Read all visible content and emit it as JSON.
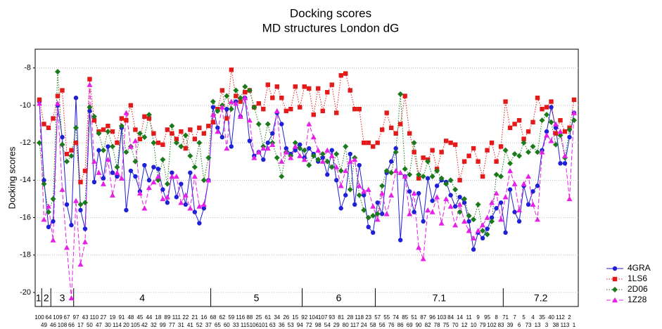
{
  "chart_data": {
    "type": "line",
    "title": "Docking scores",
    "subtitle": "MD structures London dG",
    "y_label": "Docking scores",
    "categories": [
      "100",
      "49",
      "64",
      "46",
      "109",
      "108",
      "67",
      "66",
      "97",
      "17",
      "43",
      "50",
      "110",
      "47",
      "27",
      "30",
      "19",
      "114",
      "91",
      "20",
      "48",
      "105",
      "45",
      "42",
      "44",
      "32",
      "18",
      "99",
      "89",
      "77",
      "111",
      "31",
      "22",
      "41",
      "21",
      "52",
      "16",
      "37",
      "68",
      "65",
      "62",
      "60",
      "59",
      "33",
      "116",
      "115",
      "88",
      "106",
      "25",
      "101",
      "61",
      "63",
      "34",
      "36",
      "26",
      "53",
      "15",
      "94",
      "92",
      "72",
      "104",
      "98",
      "107",
      "54",
      "93",
      "29",
      "81",
      "80",
      "28",
      "117",
      "118",
      "24",
      "23",
      "58",
      "57",
      "56",
      "55",
      "76",
      "74",
      "86",
      "85",
      "69",
      "51",
      "90",
      "87",
      "82",
      "96",
      "78",
      "103",
      "75",
      "84",
      "70",
      "14",
      "12",
      "11",
      "10",
      "9",
      "79",
      "95",
      "102",
      "8",
      "83",
      "71",
      "39",
      "7",
      "6",
      "5",
      "73",
      "4",
      "13",
      "35",
      "3",
      "40",
      "38",
      "112",
      "113",
      "2",
      "1"
    ],
    "groups": [
      {
        "label": "1",
        "first": "100"
      },
      {
        "label": "2",
        "first": "49"
      },
      {
        "label": "3",
        "first": "46"
      },
      {
        "label": "4",
        "first": "97"
      },
      {
        "label": "5",
        "first": "68"
      },
      {
        "label": "6",
        "first": "92"
      },
      {
        "label": "7.1",
        "first": "57"
      },
      {
        "label": "7.2",
        "first": "71"
      }
    ],
    "series": [
      {
        "name": "4GRA",
        "color": "#1f1fd6",
        "marker": "circle",
        "dash": "solid",
        "values": [
          -9.8,
          -14.0,
          -16.5,
          -16.2,
          -10.0,
          -11.7,
          -15.3,
          -16.4,
          -9.6,
          -15.6,
          -16.6,
          -10.3,
          -14.1,
          -12.4,
          -13.9,
          -12.2,
          -13.6,
          -13.8,
          -11.2,
          -15.6,
          -13.5,
          -13.8,
          -14.6,
          -13.2,
          -14.0,
          -13.3,
          -13.4,
          -14.5,
          -15.2,
          -13.6,
          -14.9,
          -14.2,
          -15.3,
          -13.6,
          -15.7,
          -16.3,
          -15.5,
          -14.0,
          -10.1,
          -11.2,
          -11.7,
          -10.2,
          -12.2,
          -9.8,
          -10.6,
          -9.6,
          -11.9,
          -12.7,
          -12.5,
          -12.9,
          -12.0,
          -11.5,
          -10.4,
          -11.0,
          -12.3,
          -12.6,
          -12.4,
          -12.1,
          -12.8,
          -12.3,
          -12.6,
          -13.0,
          -12.8,
          -13.7,
          -12.4,
          -14.0,
          -15.5,
          -14.8,
          -12.6,
          -15.3,
          -13.2,
          -14.8,
          -16.5,
          -16.8,
          -15.2,
          -15.8,
          -13.6,
          -13.0,
          -12.3,
          -17.2,
          -13.8,
          -14.6,
          -15.7,
          -14.7,
          -16.2,
          -13.9,
          -15.1,
          -14.3,
          -14.0,
          -14.1,
          -14.8,
          -15.4,
          -14.9,
          -15.2,
          -16.2,
          -17.7,
          -16.8,
          -17.1,
          -16.6,
          -16.0,
          -15.5,
          -15.2,
          -16.8,
          -14.5,
          -15.7,
          -16.2,
          -14.3,
          -15.3,
          -14.6,
          -14.3,
          -12.4,
          -11.4,
          -10.1,
          -11.2,
          -13.1,
          -13.1,
          -11.7,
          -10.4
        ]
      },
      {
        "name": "1LS6",
        "color": "#e41a1a",
        "marker": "square",
        "dash": "dotted",
        "values": [
          -9.7,
          -11.0,
          -11.2,
          -10.7,
          -9.5,
          -9.2,
          -12.6,
          -12.4,
          -12.0,
          -14.1,
          -13.5,
          -8.6,
          -10.8,
          -11.4,
          -11.3,
          -11.1,
          -11.4,
          -12.0,
          -10.7,
          -10.8,
          -10.0,
          -11.3,
          -11.8,
          -10.6,
          -10.7,
          -11.5,
          -12.0,
          -12.1,
          -11.3,
          -11.5,
          -11.8,
          -11.4,
          -12.3,
          -11.3,
          -11.8,
          -11.2,
          -11.5,
          -11.1,
          -10.9,
          -10.2,
          -9.2,
          -10.7,
          -8.1,
          -9.5,
          -9.8,
          -9.3,
          -9.2,
          -10.1,
          -9.9,
          -10.2,
          -8.9,
          -9.6,
          -9.0,
          -9.6,
          -10.3,
          -10.2,
          -9.0,
          -10.1,
          -9.0,
          -9.1,
          -10.5,
          -9.1,
          -10.3,
          -9.3,
          -8.9,
          -10.4,
          -8.4,
          -8.3,
          -9.2,
          -10.2,
          -10.2,
          -12.0,
          -12.0,
          -12.2,
          -12.0,
          -11.3,
          -10.4,
          -11.2,
          -11.5,
          -11.0,
          -9.5,
          -11.5,
          -12.5,
          -13.9,
          -12.8,
          -12.9,
          -12.4,
          -13.4,
          -12.5,
          -11.9,
          -12.0,
          -12.1,
          -14.0,
          -13.0,
          -12.7,
          -12.3,
          -13.0,
          -13.8,
          -12.4,
          -12.0,
          -13.0,
          -12.2,
          -9.8,
          -11.2,
          -11.0,
          -10.8,
          -11.8,
          -11.4,
          -10.9,
          -9.6,
          -10.2,
          -10.1,
          -9.8,
          -11.5,
          -10.8,
          -11.4,
          -11.2,
          -9.7
        ]
      },
      {
        "name": "2D06",
        "color": "#1b7a1b",
        "marker": "diamond",
        "dash": "dotted",
        "values": [
          -12.0,
          -14.2,
          -15.7,
          -15.0,
          -8.2,
          -12.1,
          -13.0,
          -12.7,
          -11.2,
          -15.3,
          -15.2,
          -10.1,
          -10.6,
          -11.5,
          -12.4,
          -11.4,
          -12.2,
          -13.3,
          -11.1,
          -12.5,
          -12.2,
          -13.0,
          -11.5,
          -11.7,
          -10.5,
          -12.0,
          -14.0,
          -12.9,
          -14.2,
          -11.1,
          -12.0,
          -12.2,
          -11.6,
          -12.7,
          -13.3,
          -12.0,
          -14.0,
          -12.8,
          -9.8,
          -10.3,
          -10.0,
          -9.5,
          -10.2,
          -9.2,
          -9.6,
          -9.0,
          -9.2,
          -10.1,
          -11.0,
          -12.2,
          -11.0,
          -12.0,
          -12.8,
          -13.8,
          -12.5,
          -12.7,
          -12.0,
          -12.3,
          -12.4,
          -13.2,
          -12.7,
          -12.9,
          -12.6,
          -13.0,
          -13.3,
          -12.6,
          -13.5,
          -12.2,
          -14.5,
          -12.8,
          -14.8,
          -15.6,
          -16.0,
          -15.9,
          -15.8,
          -14.3,
          -13.5,
          -13.6,
          -12.5,
          -9.4,
          -13.4,
          -13.7,
          -12.0,
          -13.7,
          -13.8,
          -13.0,
          -13.8,
          -13.5,
          -13.9,
          -14.2,
          -14.0,
          -14.5,
          -15.7,
          -15.0,
          -15.9,
          -16.1,
          -15.3,
          -16.7,
          -16.9,
          -16.2,
          -13.7,
          -13.8,
          -12.4,
          -13.1,
          -12.6,
          -12.7,
          -12.0,
          -12.5,
          -12.2,
          -12.5,
          -10.8,
          -10.5,
          -10.9,
          -12.1,
          -11.6,
          -12.8,
          -11.3,
          -10.8
        ]
      },
      {
        "name": "1Z28",
        "color": "#e61ee6",
        "marker": "triangle",
        "dash": "dashed",
        "values": [
          -9.9,
          -16.1,
          -15.4,
          -17.2,
          -9.9,
          -14.5,
          -17.6,
          -20.3,
          -15.1,
          -18.5,
          -17.3,
          -8.9,
          -13.0,
          -13.6,
          -14.2,
          -12.9,
          -14.8,
          -13.6,
          -13.9,
          -10.4,
          -12.2,
          -11.9,
          -14.7,
          -15.5,
          -14.4,
          -14.1,
          -13.8,
          -15.0,
          -14.9,
          -13.8,
          -13.8,
          -15.2,
          -14.8,
          -15.5,
          -13.8,
          -15.4,
          -15.3,
          -14.0,
          -10.5,
          -11.4,
          -10.1,
          -12.3,
          -9.8,
          -9.9,
          -10.6,
          -9.6,
          -10.8,
          -12.8,
          -12.5,
          -12.3,
          -12.3,
          -12.1,
          -10.3,
          -13.0,
          -12.5,
          -12.8,
          -12.2,
          -12.7,
          -12.9,
          -11.0,
          -11.7,
          -12.4,
          -13.0,
          -12.4,
          -12.7,
          -13.3,
          -14.3,
          -13.5,
          -13.0,
          -12.9,
          -14.3,
          -14.6,
          -14.5,
          -15.4,
          -16.1,
          -14.7,
          -15.8,
          -14.8,
          -13.5,
          -13.6,
          -13.8,
          -15.8,
          -14.7,
          -17.6,
          -18.2,
          -15.6,
          -15.7,
          -14.9,
          -16.3,
          -15.0,
          -15.4,
          -16.4,
          -15.3,
          -16.2,
          -16.7,
          -17.1,
          -16.7,
          -16.4,
          -16.0,
          -15.2,
          -14.7,
          -16.1,
          -14.9,
          -13.5,
          -14.2,
          -15.6,
          -14.2,
          -13.8,
          -15.3,
          -16.1,
          -12.5,
          -11.6,
          -11.9,
          -11.0,
          -11.4,
          -12.7,
          -15.0,
          -10.4
        ]
      }
    ],
    "ylim": [
      -20.75,
      -7
    ],
    "yticks": [
      -8,
      -10,
      -12,
      -14,
      -16,
      -18,
      -20
    ],
    "grid": true,
    "legend": "bottom-right"
  }
}
